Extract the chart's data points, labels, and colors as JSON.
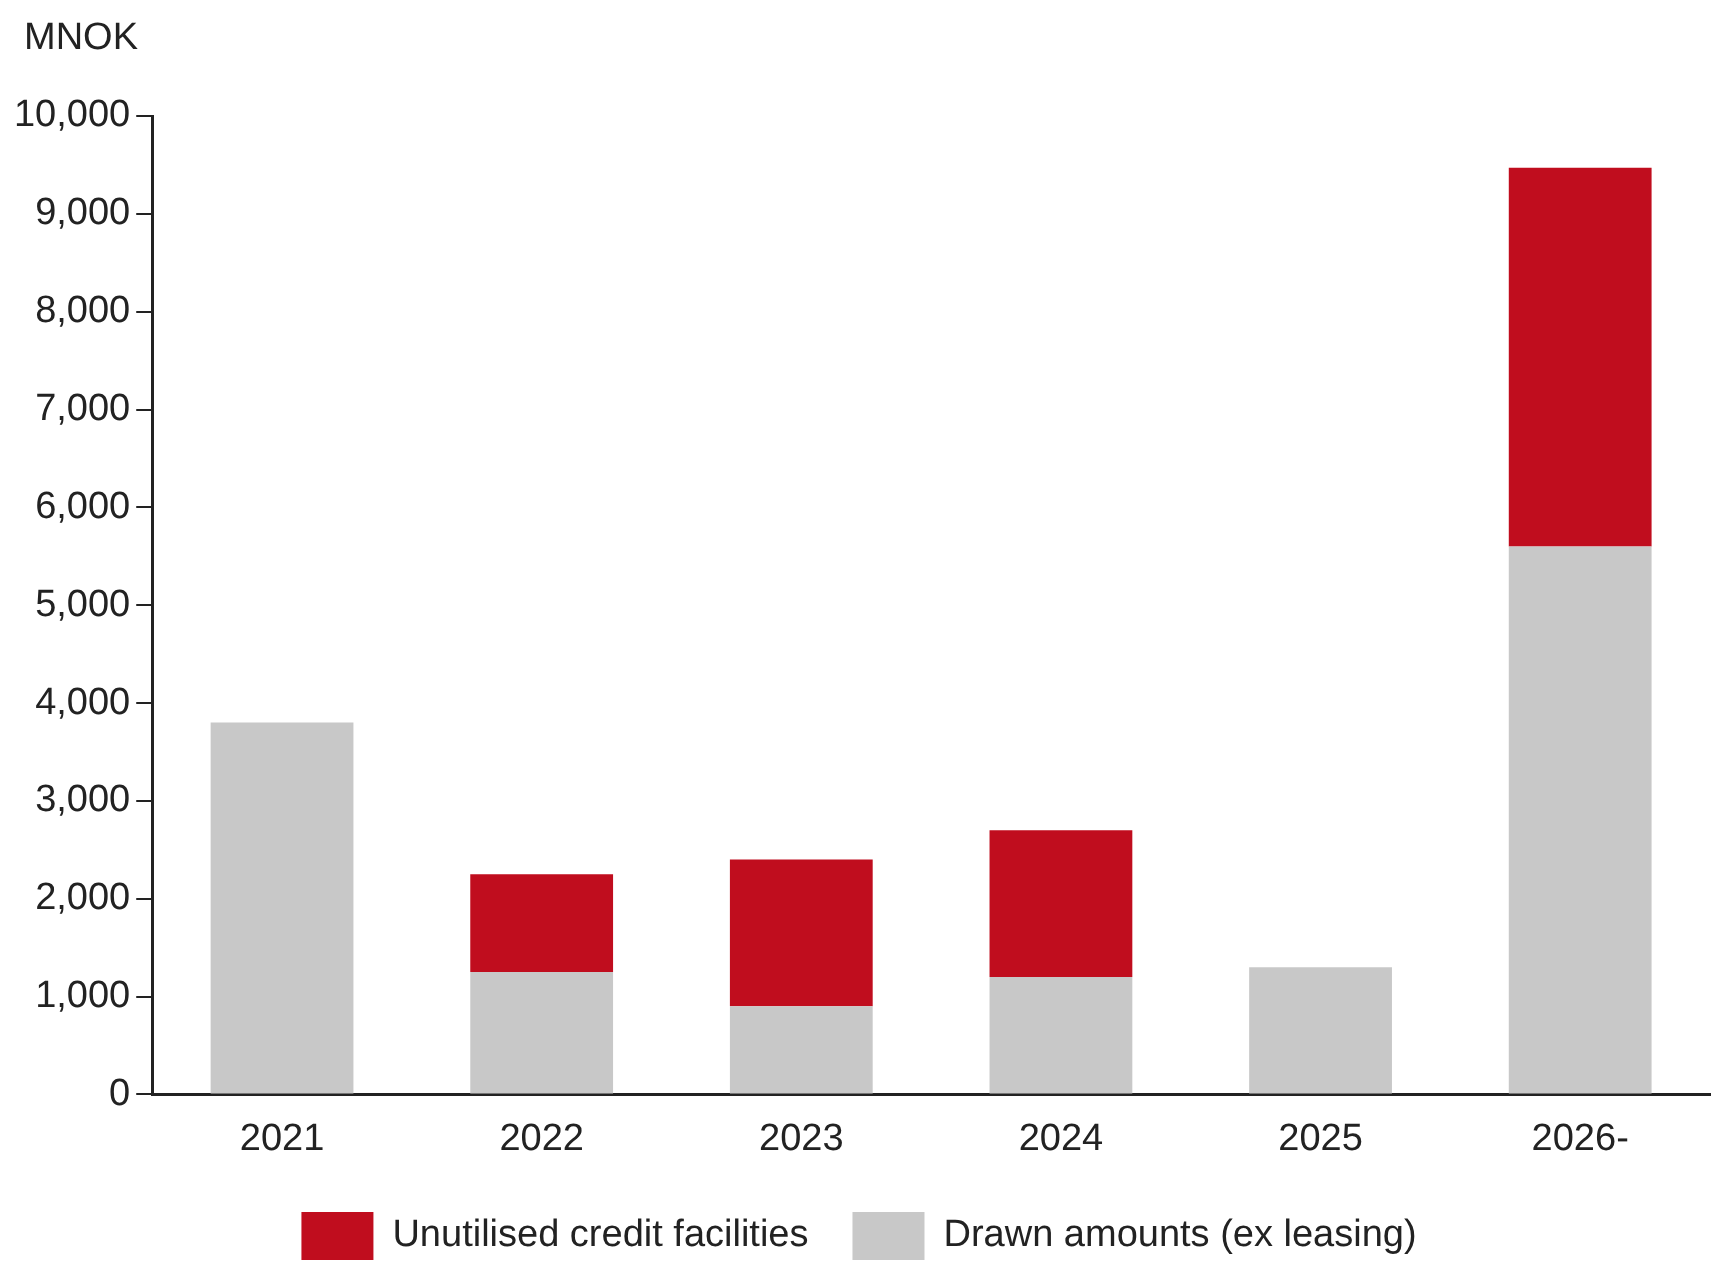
{
  "chart_data": {
    "type": "bar",
    "ylabel": "MNOK",
    "categories": [
      "2021",
      "2022",
      "2023",
      "2024",
      "2025",
      "2026-"
    ],
    "stacked": true,
    "ylim": [
      0,
      10000
    ],
    "yticks": [
      {
        "value": 0,
        "label": "0"
      },
      {
        "value": 1000,
        "label": "1,000"
      },
      {
        "value": 2000,
        "label": "2,000"
      },
      {
        "value": 3000,
        "label": "3,000"
      },
      {
        "value": 4000,
        "label": "4,000"
      },
      {
        "value": 5000,
        "label": "5,000"
      },
      {
        "value": 6000,
        "label": "6,000"
      },
      {
        "value": 7000,
        "label": "7,000"
      },
      {
        "value": 8000,
        "label": "8,000"
      },
      {
        "value": 9000,
        "label": "9,000"
      },
      {
        "value": 10000,
        "label": "10,000"
      }
    ],
    "grid": false,
    "legend": "bottom",
    "series": [
      {
        "name": "Drawn amounts (ex leasing)",
        "color": "#c8c8c8",
        "values": [
          3800,
          1250,
          900,
          1200,
          1300,
          5600
        ]
      },
      {
        "name": "Unutilised credit facilities",
        "color": "#c00d1e",
        "values": [
          null,
          1000,
          1500,
          1500,
          null,
          3870
        ]
      }
    ]
  }
}
